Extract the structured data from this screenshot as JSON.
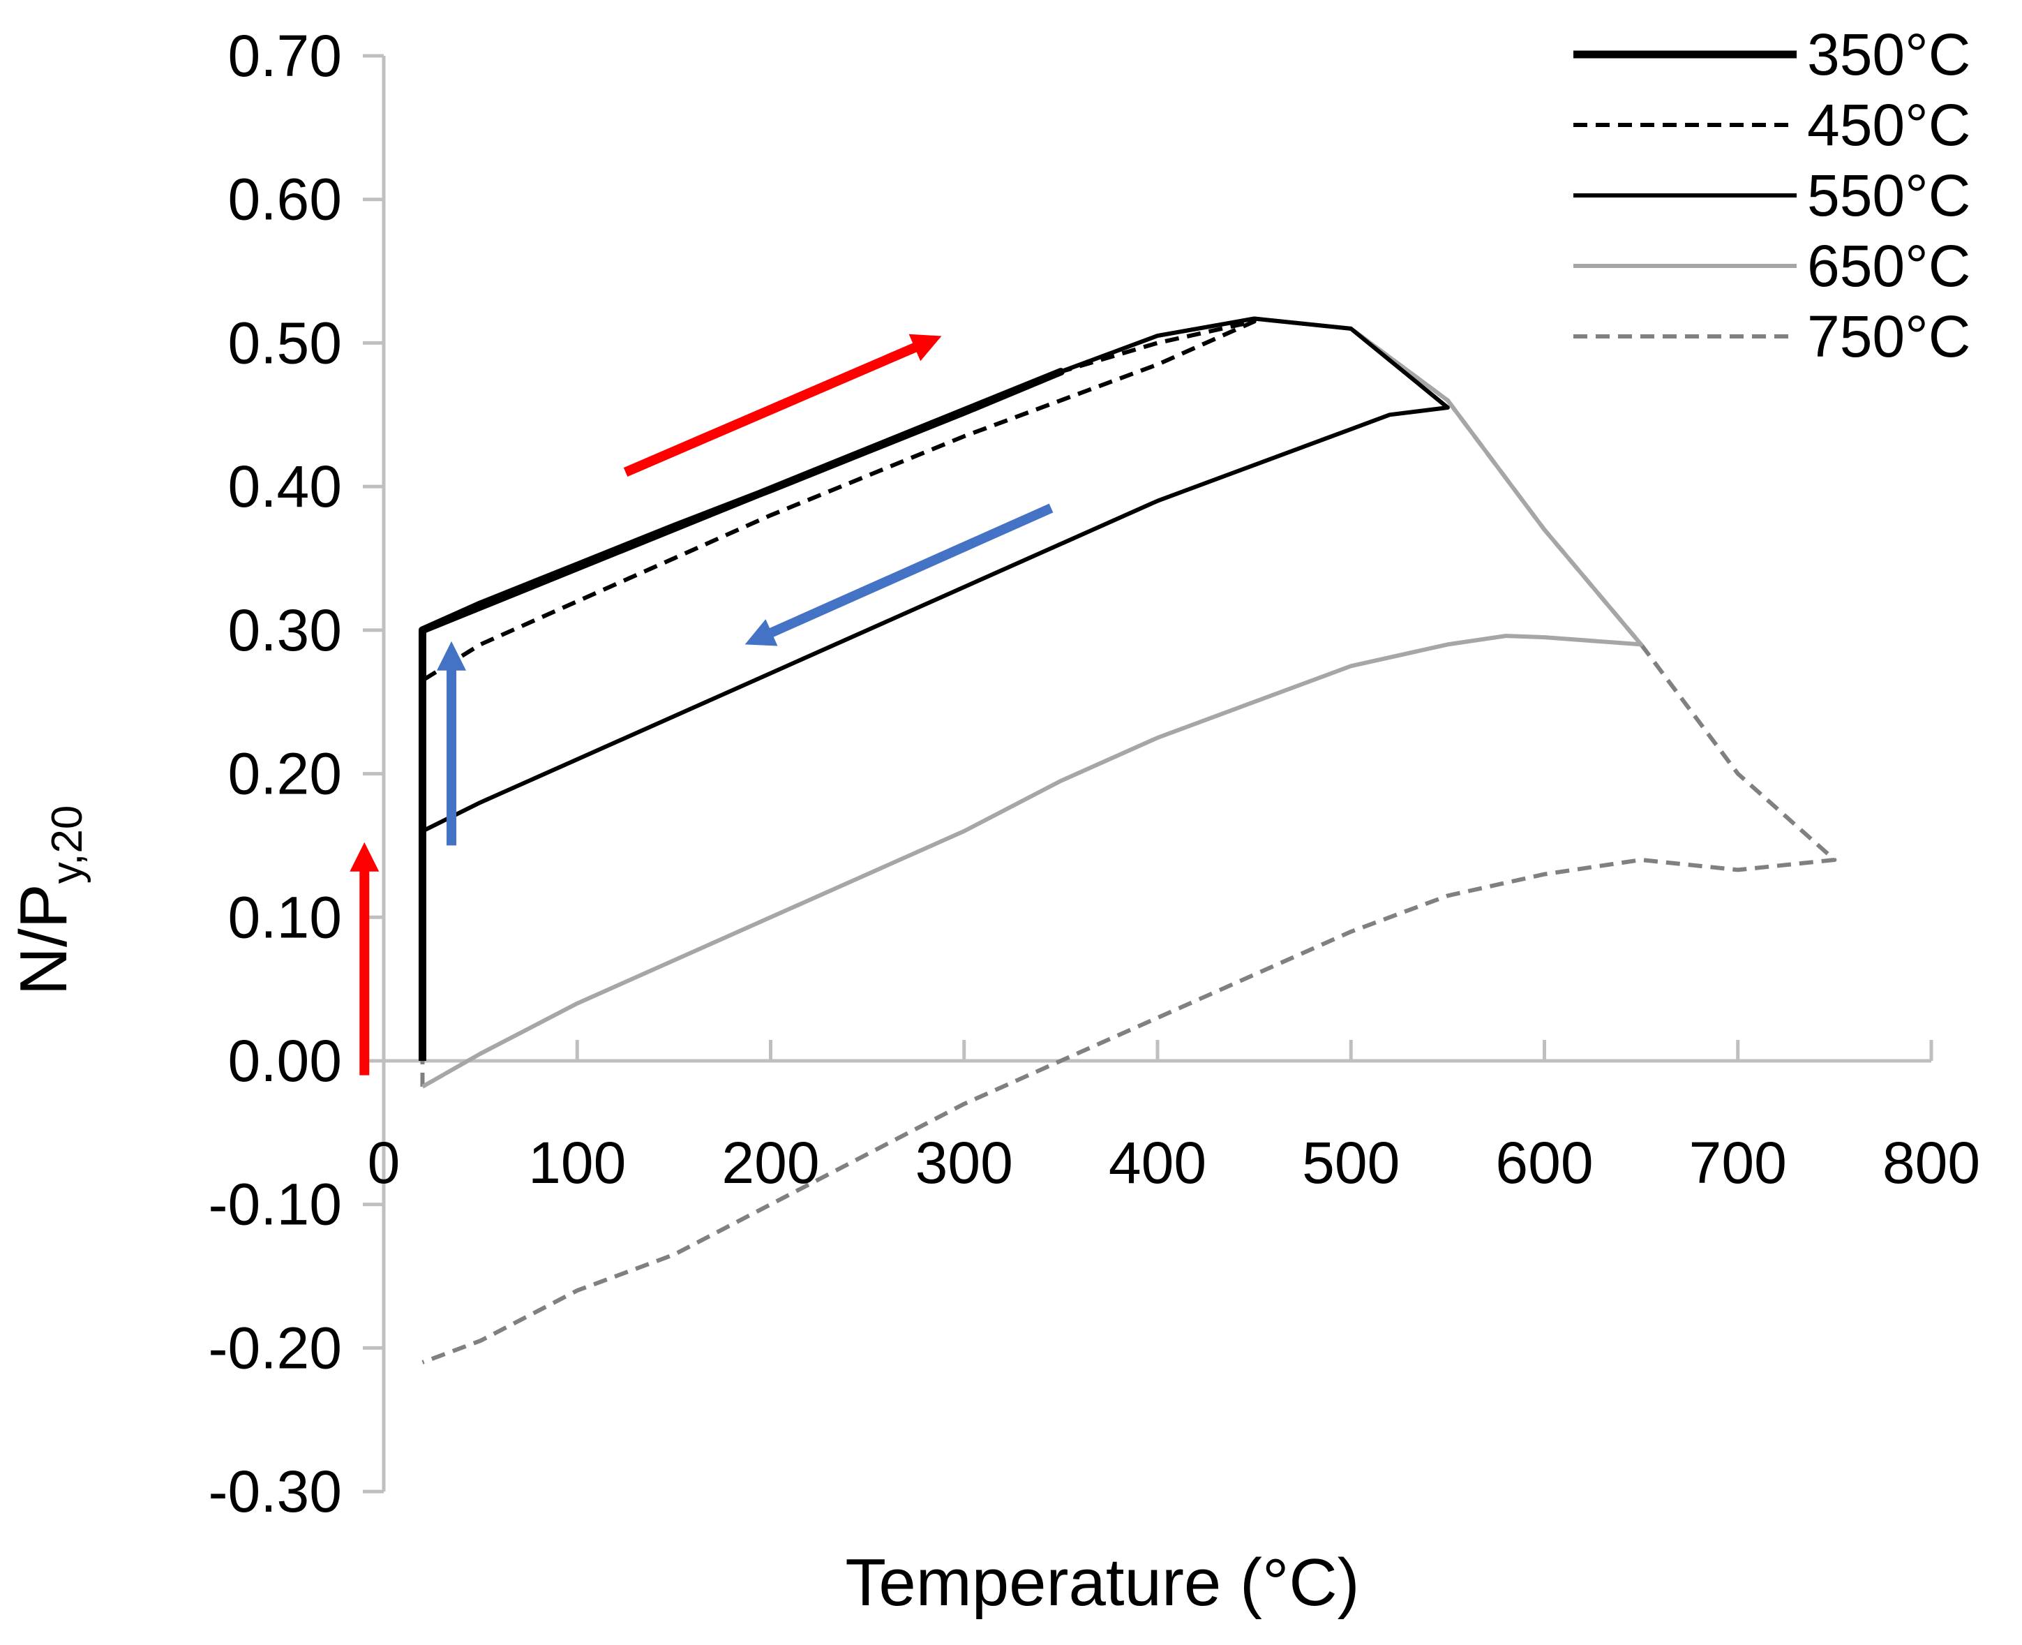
{
  "chart_data": {
    "type": "line",
    "title": "",
    "xlabel": "Temperature (°C)",
    "ylabel": "N/P",
    "ylabel_subscript": "y,20",
    "xlim": [
      0,
      800
    ],
    "ylim": [
      -0.3,
      0.7
    ],
    "x_ticks": [
      "0",
      "100",
      "200",
      "300",
      "400",
      "500",
      "600",
      "700",
      "800"
    ],
    "y_ticks": [
      "-0.30",
      "-0.20",
      "-0.10",
      "0.00",
      "0.10",
      "0.20",
      "0.30",
      "0.40",
      "0.50",
      "0.60",
      "0.70"
    ],
    "legend_position": "top-right",
    "series": [
      {
        "name": "350°C",
        "color": "#000000",
        "style": "solid-thick",
        "points": [
          [
            20,
            0
          ],
          [
            20,
            0.3
          ],
          [
            50,
            0.318
          ],
          [
            100,
            0.345
          ],
          [
            150,
            0.372
          ],
          [
            200,
            0.398
          ],
          [
            250,
            0.425
          ],
          [
            300,
            0.452
          ],
          [
            350,
            0.48
          ],
          [
            20,
            0.3
          ]
        ]
      },
      {
        "name": "450°C",
        "color": "#000000",
        "style": "dashed",
        "points": [
          [
            20,
            0
          ],
          [
            20,
            0.3
          ],
          [
            100,
            0.345
          ],
          [
            200,
            0.398
          ],
          [
            300,
            0.452
          ],
          [
            350,
            0.48
          ],
          [
            400,
            0.5
          ],
          [
            450,
            0.515
          ],
          [
            400,
            0.485
          ],
          [
            300,
            0.435
          ],
          [
            200,
            0.38
          ],
          [
            100,
            0.32
          ],
          [
            50,
            0.29
          ],
          [
            20,
            0.265
          ]
        ]
      },
      {
        "name": "550°C",
        "color": "#000000",
        "style": "solid",
        "points": [
          [
            20,
            0
          ],
          [
            20,
            0.3
          ],
          [
            100,
            0.345
          ],
          [
            200,
            0.398
          ],
          [
            300,
            0.452
          ],
          [
            350,
            0.48
          ],
          [
            400,
            0.505
          ],
          [
            450,
            0.517
          ],
          [
            500,
            0.51
          ],
          [
            550,
            0.455
          ],
          [
            520,
            0.45
          ],
          [
            500,
            0.44
          ],
          [
            450,
            0.415
          ],
          [
            400,
            0.39
          ],
          [
            350,
            0.36
          ],
          [
            300,
            0.33
          ],
          [
            200,
            0.27
          ],
          [
            100,
            0.21
          ],
          [
            50,
            0.18
          ],
          [
            20,
            0.16
          ]
        ]
      },
      {
        "name": "650°C",
        "color": "#a6a6a6",
        "style": "solid",
        "points": [
          [
            20,
            0
          ],
          [
            20,
            0.3
          ],
          [
            100,
            0.345
          ],
          [
            200,
            0.398
          ],
          [
            300,
            0.452
          ],
          [
            350,
            0.48
          ],
          [
            400,
            0.505
          ],
          [
            450,
            0.517
          ],
          [
            500,
            0.51
          ],
          [
            550,
            0.46
          ],
          [
            600,
            0.37
          ],
          [
            650,
            0.29
          ],
          [
            600,
            0.295
          ],
          [
            580,
            0.296
          ],
          [
            550,
            0.29
          ],
          [
            500,
            0.275
          ],
          [
            450,
            0.25
          ],
          [
            400,
            0.225
          ],
          [
            350,
            0.195
          ],
          [
            300,
            0.16
          ],
          [
            250,
            0.13
          ],
          [
            200,
            0.1
          ],
          [
            150,
            0.07
          ],
          [
            100,
            0.04
          ],
          [
            50,
            0.005
          ],
          [
            20,
            -0.018
          ]
        ]
      },
      {
        "name": "750°C",
        "color": "#808080",
        "style": "dashed",
        "points": [
          [
            20,
            -0.018
          ],
          [
            20,
            0.3
          ],
          [
            100,
            0.345
          ],
          [
            200,
            0.398
          ],
          [
            300,
            0.452
          ],
          [
            350,
            0.48
          ],
          [
            400,
            0.505
          ],
          [
            450,
            0.517
          ],
          [
            500,
            0.51
          ],
          [
            550,
            0.46
          ],
          [
            600,
            0.37
          ],
          [
            650,
            0.29
          ],
          [
            700,
            0.2
          ],
          [
            750,
            0.14
          ],
          [
            700,
            0.133
          ],
          [
            650,
            0.14
          ],
          [
            600,
            0.13
          ],
          [
            550,
            0.115
          ],
          [
            500,
            0.09
          ],
          [
            450,
            0.06
          ],
          [
            400,
            0.03
          ],
          [
            350,
            0.0
          ],
          [
            300,
            -0.03
          ],
          [
            250,
            -0.065
          ],
          [
            200,
            -0.1
          ],
          [
            150,
            -0.135
          ],
          [
            100,
            -0.16
          ],
          [
            50,
            -0.195
          ],
          [
            20,
            -0.21
          ]
        ]
      }
    ],
    "annotations": [
      {
        "type": "arrow",
        "color": "#ff0000",
        "from": [
          -10,
          -0.01
        ],
        "to": [
          -10,
          0.14
        ]
      },
      {
        "type": "arrow",
        "color": "#ff0000",
        "from": [
          125,
          0.41
        ],
        "to": [
          280,
          0.5
        ]
      },
      {
        "type": "arrow",
        "color": "#4472c4",
        "from": [
          345,
          0.385
        ],
        "to": [
          195,
          0.295
        ]
      },
      {
        "type": "arrow",
        "color": "#4472c4",
        "from": [
          35,
          0.15
        ],
        "to": [
          35,
          0.28
        ]
      }
    ]
  }
}
